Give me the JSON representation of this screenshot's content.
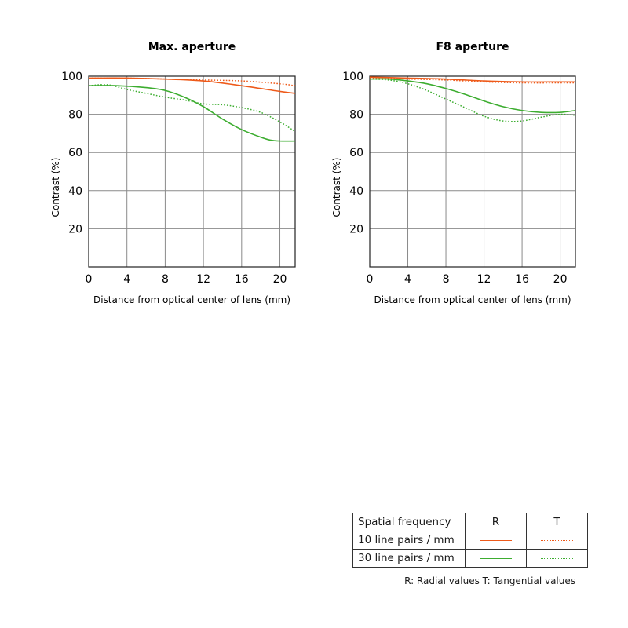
{
  "colors": {
    "r10": "#ee5a1a",
    "r30": "#3dad30",
    "grid": "#8a8a8a",
    "axis": "#222222"
  },
  "chart_data": [
    {
      "type": "line",
      "title": "Max. aperture",
      "xlabel": "Distance from optical center of lens (mm)",
      "ylabel": "Contrast (%)",
      "xlim": [
        0,
        21.6
      ],
      "ylim": [
        0,
        100
      ],
      "xticks": [
        0,
        4,
        8,
        12,
        16,
        20
      ],
      "yticks": [
        20,
        40,
        60,
        80,
        100
      ],
      "grid": true,
      "series": [
        {
          "name": "10 line pairs / mm R",
          "style": "solid",
          "color": "#ee5a1a",
          "x": [
            0,
            4,
            8,
            12,
            16,
            20,
            21.6
          ],
          "y": [
            99,
            99,
            98.5,
            97.5,
            95,
            92,
            91
          ]
        },
        {
          "name": "10 line pairs / mm T",
          "style": "dotted",
          "color": "#ee5a1a",
          "x": [
            0,
            4,
            8,
            12,
            16,
            20,
            21.6
          ],
          "y": [
            99,
            99,
            98.5,
            98,
            97.5,
            96,
            95
          ]
        },
        {
          "name": "30 line pairs / mm R",
          "style": "solid",
          "color": "#3dad30",
          "x": [
            0,
            3,
            6,
            8,
            10,
            12,
            14,
            16,
            18,
            19,
            20,
            21.6
          ],
          "y": [
            95,
            95,
            94,
            92.5,
            89,
            84,
            77.5,
            72,
            68,
            66.5,
            66,
            66
          ]
        },
        {
          "name": "30 line pairs / mm T",
          "style": "dotted",
          "color": "#3dad30",
          "x": [
            0,
            2,
            4,
            6,
            8,
            10,
            12,
            14,
            16,
            18,
            20,
            21.6
          ],
          "y": [
            95,
            95.5,
            93,
            91,
            89,
            87.5,
            85.5,
            85,
            83.5,
            81,
            76,
            71
          ]
        }
      ]
    },
    {
      "type": "line",
      "title": "F8 aperture",
      "xlabel": "Distance from optical center of lens (mm)",
      "ylabel": "Contrast (%)",
      "xlim": [
        0,
        21.6
      ],
      "ylim": [
        0,
        100
      ],
      "xticks": [
        0,
        4,
        8,
        12,
        16,
        20
      ],
      "yticks": [
        20,
        40,
        60,
        80,
        100
      ],
      "grid": true,
      "series": [
        {
          "name": "10 line pairs / mm R",
          "style": "solid",
          "color": "#ee5a1a",
          "x": [
            0,
            4,
            8,
            12,
            16,
            20,
            21.6
          ],
          "y": [
            99.5,
            99,
            98.5,
            97.5,
            97,
            97,
            97
          ]
        },
        {
          "name": "10 line pairs / mm T",
          "style": "dotted",
          "color": "#ee5a1a",
          "x": [
            0,
            4,
            8,
            12,
            16,
            20,
            21.6
          ],
          "y": [
            99,
            98.5,
            98,
            97,
            96.5,
            96.5,
            96.5
          ]
        },
        {
          "name": "30 line pairs / mm R",
          "style": "solid",
          "color": "#3dad30",
          "x": [
            0,
            2,
            4,
            6,
            8,
            10,
            12,
            14,
            16,
            18,
            20,
            21.6
          ],
          "y": [
            98.5,
            98.5,
            97.5,
            96,
            93.5,
            90.5,
            87,
            84,
            82,
            81,
            81,
            82
          ]
        },
        {
          "name": "30 line pairs / mm T",
          "style": "dotted",
          "color": "#3dad30",
          "x": [
            0,
            2,
            4,
            6,
            8,
            10,
            12,
            14,
            16,
            18,
            20,
            21.6
          ],
          "y": [
            98.5,
            98,
            96,
            92.5,
            88,
            83.5,
            79,
            76.5,
            76.5,
            78.5,
            80,
            79.5
          ]
        }
      ]
    }
  ],
  "legend": {
    "header": "Spatial frequency",
    "col_r": "R",
    "col_t": "T",
    "rows": [
      "10 line pairs / mm",
      "30 line pairs / mm"
    ]
  },
  "footnote": "R: Radial values  T: Tangential values"
}
